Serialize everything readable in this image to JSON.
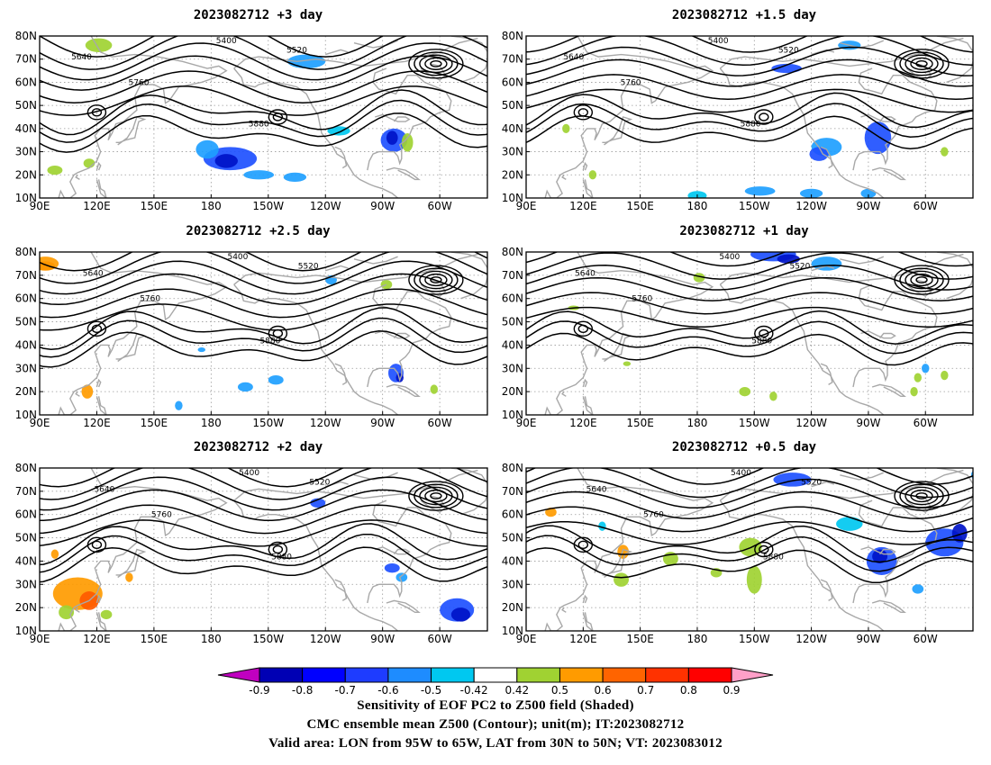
{
  "panels": [
    {
      "id": "p3",
      "title": "2023082712 +3 day"
    },
    {
      "id": "p15",
      "title": "2023082712 +1.5 day"
    },
    {
      "id": "p25",
      "title": "2023082712 +2.5 day"
    },
    {
      "id": "p1",
      "title": "2023082712 +1 day"
    },
    {
      "id": "p2",
      "title": "2023082712 +2 day"
    },
    {
      "id": "p05",
      "title": "2023082712 +0.5 day"
    }
  ],
  "axes": {
    "lon_ticks": [
      "90E",
      "120E",
      "150E",
      "180",
      "150W",
      "120W",
      "90W",
      "60W"
    ],
    "lon_values": [
      90,
      120,
      150,
      180,
      210,
      240,
      270,
      300
    ],
    "lon_range": [
      90,
      325
    ],
    "lat_ticks": [
      "10N",
      "20N",
      "30N",
      "40N",
      "50N",
      "60N",
      "70N",
      "80N"
    ],
    "lat_values": [
      10,
      20,
      30,
      40,
      50,
      60,
      70,
      80
    ],
    "lat_range": [
      10,
      80
    ],
    "grid": "dotted"
  },
  "contour_levels": [
    "5400",
    "5520",
    "5640",
    "5760",
    "5880"
  ],
  "colorbar": {
    "labels": [
      "-0.9",
      "-0.8",
      "-0.7",
      "-0.6",
      "-0.5",
      "-0.42",
      "0.42",
      "0.5",
      "0.6",
      "0.7",
      "0.8",
      "0.9"
    ],
    "colors": [
      "#c000c0",
      "#0000b4",
      "#0000ff",
      "#1e3cff",
      "#1e8cff",
      "#00c8f0",
      "#ffffff",
      "#a0d232",
      "#ff9b00",
      "#ff6400",
      "#ff3200",
      "#ff0000",
      "#ffa0c8"
    ]
  },
  "colors": {
    "coast": "#a8a8a8",
    "contour": "#000000",
    "blue_dark": "#0014c8",
    "blue_mid": "#1e50ff",
    "blue_light": "#1ea0ff",
    "cyan": "#00c8f0",
    "green": "#a0d232",
    "orange": "#ff9b00",
    "red_orange": "#ff5a00"
  },
  "caption": {
    "line1": "Sensitivity of EOF PC2 to Z500 field (Shaded)",
    "line2": "CMC ensemble mean Z500 (Contour); unit(m); IT:2023082712",
    "line3": "Valid area: LON from 95W to 65W, LAT from 30N to 50N; VT: 2023083012"
  }
}
